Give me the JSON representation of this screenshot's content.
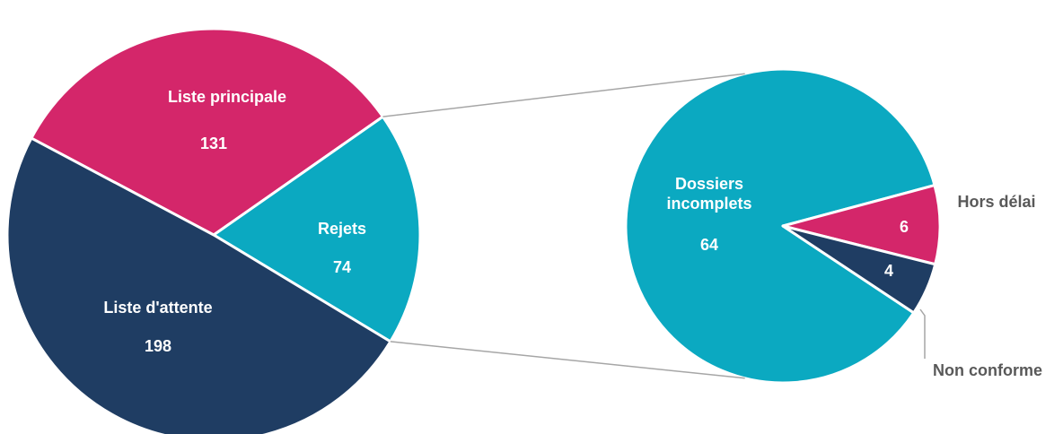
{
  "chart_data": [
    {
      "type": "pie",
      "categories": [
        "Liste principale",
        "Rejets",
        "Liste d'attente"
      ],
      "values": [
        131,
        74,
        198
      ],
      "colors": [
        "#d4266a",
        "#0ba9c1",
        "#1f3d63"
      ]
    },
    {
      "type": "pie",
      "categories": [
        "Dossiers incomplets",
        "Hors délai",
        "Non conforme"
      ],
      "values": [
        64,
        6,
        4
      ],
      "colors": [
        "#0ba9c1",
        "#d4266a",
        "#1f3d63"
      ]
    }
  ]
}
